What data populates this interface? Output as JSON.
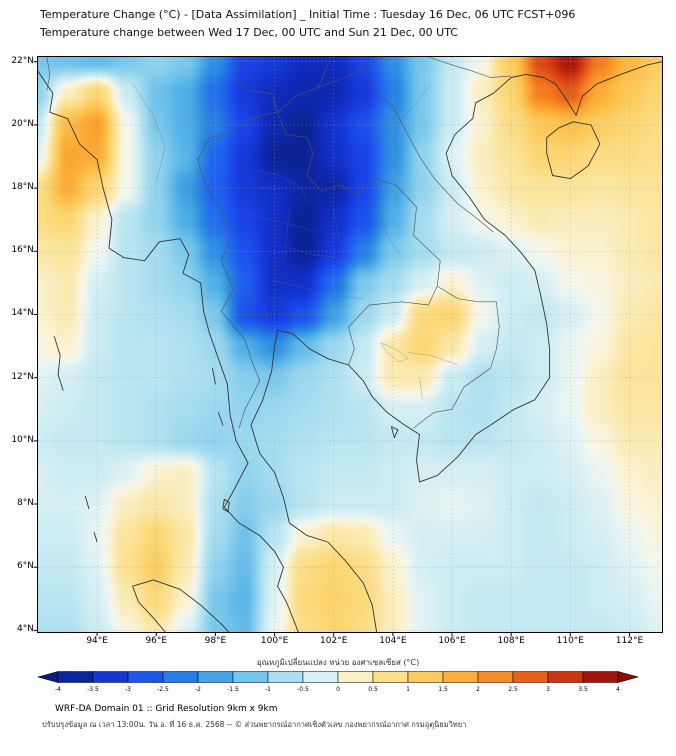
{
  "header": {
    "title_line1": "Temperature Change (°C) - [Data Assimilation] _ Initial Time : Tuesday 16 Dec, 06 UTC FCST+096",
    "title_line2": "Temperature change between Wed 17 Dec, 00 UTC and Sun 21 Dec, 00 UTC"
  },
  "axes": {
    "x_labels": [
      "94°E",
      "96°E",
      "98°E",
      "100°E",
      "102°E",
      "104°E",
      "106°E",
      "108°E",
      "110°E",
      "112°E"
    ],
    "x_values": [
      94,
      96,
      98,
      100,
      102,
      104,
      106,
      108,
      110,
      112
    ],
    "y_labels": [
      "22°N",
      "20°N",
      "18°N",
      "16°N",
      "14°N",
      "12°N",
      "10°N",
      "8°N",
      "6°N",
      "4°N"
    ],
    "y_values": [
      22,
      20,
      18,
      16,
      14,
      12,
      10,
      8,
      6,
      4
    ],
    "lon_range": [
      92.0,
      113.1
    ],
    "lat_range": [
      3.95,
      22.15
    ]
  },
  "colorbar": {
    "label": "อุณหภูมิเปลี่ยนแปลง หน่วย องศาเซลเซียส (°C)",
    "min": -4,
    "max": 4,
    "step": 0.5,
    "ticks": [
      -4,
      -3.5,
      -3,
      -2.5,
      -2,
      -1.5,
      -1,
      -0.5,
      0,
      0.5,
      1,
      1.5,
      2,
      2.5,
      3,
      3.5,
      4
    ],
    "stops": [
      [
        -4.0,
        "#081d78"
      ],
      [
        -3.5,
        "#102bbe"
      ],
      [
        -3.0,
        "#1a43e8"
      ],
      [
        -2.5,
        "#2066ee"
      ],
      [
        -2.0,
        "#2e8fe0"
      ],
      [
        -1.5,
        "#5ab6e8"
      ],
      [
        -1.0,
        "#92d4ee"
      ],
      [
        -0.5,
        "#c3e9f2"
      ],
      [
        -0.15,
        "#e4f4f4"
      ],
      [
        0.0,
        "#f4f6ec"
      ],
      [
        0.15,
        "#faf3d6"
      ],
      [
        0.5,
        "#fbe7a4"
      ],
      [
        1.0,
        "#fcd672"
      ],
      [
        1.5,
        "#fdc04a"
      ],
      [
        2.0,
        "#fba02c"
      ],
      [
        2.5,
        "#f2761f"
      ],
      [
        3.0,
        "#dd4a15"
      ],
      [
        3.5,
        "#bb200d"
      ],
      [
        4.0,
        "#8a0b09"
      ]
    ]
  },
  "footer": {
    "line1": "WRF-DA Domain 01 :: Grid Resolution 9km x 9km",
    "line2": "ปรับปรุงข้อมูล ณ เวลา 13:00น. วัน อ. ที่ 16 ธ.ค. 2568 -- © ส่วนพยากรณ์อากาศเชิงตัวเลข กองพยากรณ์อากาศ กรมอุตุนิยมวิทยา"
  },
  "chart_data": {
    "type": "heatmap",
    "title": "Temperature Change (°C) - [Data Assimilation] _ Initial Time : Tuesday 16 Dec, 06 UTC FCST+096",
    "subtitle": "Temperature change between Wed 17 Dec, 00 UTC and Sun 21 Dec, 00 UTC",
    "xlabel": "",
    "ylabel": "",
    "units": "°C",
    "value_range": [
      -4,
      4
    ],
    "colorbar_label": "อุณหภูมิเปลี่ยนแปลง หน่วย องศาเซลเซียส (°C)",
    "lons": [
      92,
      93,
      94,
      95,
      96,
      97,
      98,
      99,
      100,
      101,
      102,
      103,
      104,
      105,
      106,
      107,
      108,
      109,
      110,
      111,
      112,
      113
    ],
    "lats": [
      22,
      21,
      20,
      19,
      18,
      17,
      16,
      15,
      14,
      13,
      12,
      11,
      10,
      9,
      8,
      7,
      6,
      5,
      4
    ],
    "values_degC": [
      [
        -1.2,
        -1.3,
        -1.4,
        -1.2,
        -1.0,
        -1.2,
        -2.0,
        -3.0,
        -3.2,
        -3.5,
        -3.5,
        -3.0,
        -2.0,
        -1.2,
        -0.5,
        0.0,
        1.2,
        3.0,
        3.7,
        2.4,
        1.6,
        1.2
      ],
      [
        -1.0,
        0.3,
        1.0,
        -0.4,
        -1.3,
        -1.6,
        -2.4,
        -3.2,
        -3.5,
        -3.6,
        -3.6,
        -3.2,
        -2.2,
        -1.2,
        -0.4,
        0.3,
        1.0,
        2.4,
        2.8,
        1.8,
        1.3,
        1.0
      ],
      [
        -0.5,
        1.6,
        2.0,
        0.0,
        -1.2,
        -1.6,
        -2.2,
        -3.0,
        -3.6,
        -3.8,
        -3.3,
        -2.8,
        -2.0,
        -1.2,
        -0.4,
        0.2,
        0.8,
        1.3,
        1.5,
        1.2,
        1.0,
        0.8
      ],
      [
        -0.2,
        1.9,
        1.8,
        0.0,
        -1.0,
        -1.5,
        -2.5,
        -3.2,
        -3.8,
        -3.8,
        -3.4,
        -3.0,
        -2.0,
        -1.0,
        -0.2,
        0.3,
        0.6,
        1.0,
        1.0,
        0.8,
        0.8,
        0.7
      ],
      [
        0.8,
        1.8,
        1.0,
        0.0,
        -1.0,
        -1.8,
        -2.6,
        -3.2,
        -3.4,
        -3.7,
        -3.7,
        -3.0,
        -1.8,
        -1.0,
        -0.4,
        0.2,
        0.5,
        0.6,
        0.6,
        0.5,
        0.6,
        0.6
      ],
      [
        0.8,
        1.0,
        0.2,
        -0.6,
        -1.0,
        -1.6,
        -2.4,
        -3.0,
        -3.4,
        -3.8,
        -3.4,
        -2.8,
        -1.6,
        -0.8,
        -0.3,
        0.0,
        0.2,
        0.4,
        0.3,
        0.3,
        0.4,
        0.5
      ],
      [
        0.5,
        0.6,
        0.0,
        -0.6,
        -0.8,
        -1.2,
        -2.0,
        -2.8,
        -3.4,
        -3.8,
        -3.2,
        -2.2,
        -1.2,
        -0.8,
        -0.5,
        -0.4,
        -0.2,
        0.0,
        0.2,
        0.2,
        0.4,
        0.5
      ],
      [
        0.2,
        0.4,
        -0.3,
        -0.6,
        -0.8,
        -1.0,
        -1.6,
        -2.6,
        -3.4,
        -3.4,
        -2.4,
        -1.2,
        -0.8,
        -0.3,
        0.2,
        -0.2,
        -0.4,
        -0.3,
        0.0,
        0.1,
        0.3,
        0.4
      ],
      [
        0.2,
        0.4,
        -0.4,
        -0.6,
        -0.7,
        -0.8,
        -1.2,
        -2.8,
        -3.2,
        -2.8,
        -1.8,
        -0.9,
        -0.4,
        0.9,
        1.0,
        0.0,
        -0.4,
        -0.5,
        -0.3,
        0.0,
        0.4,
        0.5
      ],
      [
        0.1,
        0.2,
        -0.4,
        -0.6,
        -0.6,
        -0.7,
        -0.9,
        -1.6,
        -2.0,
        -1.4,
        -0.9,
        -0.5,
        0.5,
        1.0,
        0.5,
        -0.3,
        -0.5,
        -0.4,
        -0.1,
        0.1,
        0.5,
        0.6
      ],
      [
        -0.2,
        -0.3,
        -0.5,
        -0.6,
        -0.6,
        -0.7,
        -0.8,
        -1.1,
        -1.2,
        -0.9,
        -0.7,
        -0.4,
        0.4,
        0.4,
        -0.4,
        -0.7,
        -0.6,
        -0.4,
        -0.1,
        0.3,
        0.6,
        0.6
      ],
      [
        -0.3,
        -0.4,
        -0.5,
        -0.6,
        -0.7,
        -0.8,
        -0.9,
        -1.0,
        -0.9,
        -0.8,
        -0.7,
        -0.6,
        -0.3,
        -0.3,
        -0.6,
        -0.7,
        -0.5,
        -0.3,
        -0.1,
        0.3,
        0.5,
        0.5
      ],
      [
        -0.4,
        -0.5,
        -0.5,
        -0.6,
        -0.7,
        -0.9,
        -1.0,
        -0.9,
        -0.8,
        -0.7,
        -0.6,
        -0.6,
        -0.5,
        -0.5,
        -0.6,
        -0.6,
        -0.5,
        -0.4,
        -0.2,
        0.1,
        0.4,
        0.4
      ],
      [
        -0.3,
        -0.4,
        -0.4,
        -0.2,
        0.2,
        0.3,
        -0.6,
        -1.0,
        -0.8,
        -0.6,
        -0.5,
        -0.5,
        -0.4,
        -0.3,
        -0.3,
        -0.3,
        -0.4,
        -0.4,
        -0.3,
        -0.1,
        0.2,
        0.3
      ],
      [
        -0.3,
        -0.3,
        -0.2,
        0.3,
        0.5,
        0.3,
        -0.7,
        -1.1,
        -0.9,
        -0.6,
        -0.4,
        -0.4,
        -0.4,
        -0.2,
        -0.1,
        -0.2,
        -0.4,
        -0.5,
        -0.4,
        -0.2,
        0.1,
        0.2
      ],
      [
        -0.4,
        -0.4,
        -0.1,
        0.6,
        1.0,
        0.5,
        -0.8,
        -1.3,
        -0.6,
        0.2,
        0.5,
        0.4,
        -0.1,
        -0.3,
        -0.3,
        -0.3,
        -0.4,
        -0.5,
        -0.4,
        -0.3,
        -0.1,
        0.1
      ],
      [
        -0.5,
        -0.5,
        -0.2,
        0.7,
        1.2,
        0.4,
        -1.0,
        -1.4,
        -0.3,
        0.8,
        1.0,
        0.8,
        0.2,
        -0.3,
        -0.4,
        -0.4,
        -0.4,
        -0.5,
        -0.5,
        -0.4,
        -0.2,
        0.0
      ],
      [
        -0.6,
        -0.6,
        -0.3,
        0.4,
        0.9,
        0.2,
        -1.2,
        -1.5,
        -0.2,
        0.9,
        1.1,
        0.9,
        0.3,
        -0.2,
        -0.4,
        -0.5,
        -0.5,
        -0.5,
        -0.5,
        -0.4,
        -0.3,
        -0.1
      ],
      [
        -0.7,
        -0.7,
        -0.4,
        0.1,
        0.5,
        -0.2,
        -1.2,
        -1.4,
        -0.1,
        0.8,
        1.0,
        0.8,
        0.3,
        -0.2,
        -0.4,
        -0.5,
        -0.5,
        -0.5,
        -0.5,
        -0.5,
        -0.4,
        -0.2
      ]
    ]
  }
}
